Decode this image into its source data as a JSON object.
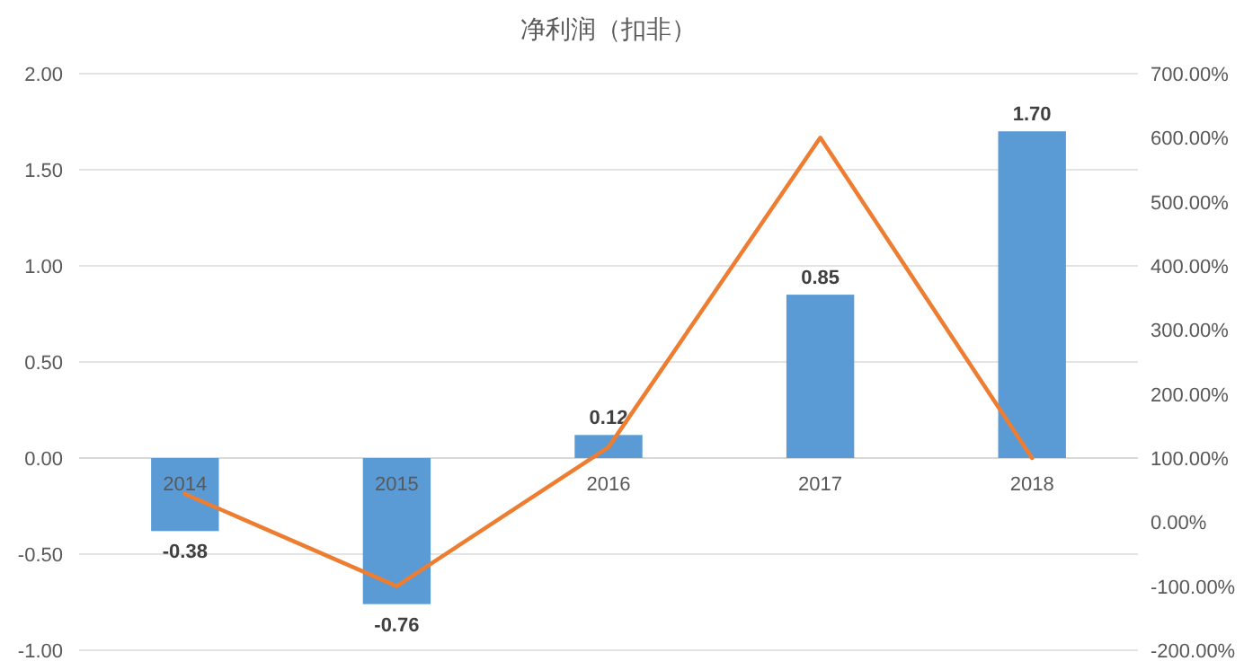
{
  "chart_data": {
    "type": "bar",
    "title": "净利润（扣非）",
    "categories": [
      "2014",
      "2015",
      "2016",
      "2017",
      "2018"
    ],
    "series": [
      {
        "color": "#5b9bd5",
        "values": [
          -0.38,
          -0.76,
          0.12,
          0.85,
          1.7
        ],
        "value_labels": [
          "-0.38",
          "-0.76",
          "0.12",
          "0.85",
          "1.70"
        ]
      },
      {
        "type": "line",
        "axis": "y2",
        "color": "#ed7d31",
        "values": [
          44,
          -100,
          117,
          600,
          100
        ]
      }
    ],
    "ylim": [
      -1,
      2
    ],
    "yticks": [
      {
        "value": -1,
        "label": "-1.00"
      },
      {
        "value": -0.5,
        "label": "-0.50"
      },
      {
        "value": 0,
        "label": "0.00"
      },
      {
        "value": 0.5,
        "label": "0.50"
      },
      {
        "value": 1,
        "label": "1.00"
      },
      {
        "value": 1.5,
        "label": "1.50"
      },
      {
        "value": 2,
        "label": "2.00"
      }
    ],
    "y2lim": [
      -200,
      700
    ],
    "y2ticks": [
      {
        "value": -200,
        "label": "-200.00%"
      },
      {
        "value": -100,
        "label": "-100.00%"
      },
      {
        "value": 0,
        "label": "0.00%"
      },
      {
        "value": 100,
        "label": "100.00%"
      },
      {
        "value": 200,
        "label": "200.00%"
      },
      {
        "value": 300,
        "label": "300.00%"
      },
      {
        "value": 400,
        "label": "400.00%"
      },
      {
        "value": 500,
        "label": "500.00%"
      },
      {
        "value": 600,
        "label": "600.00%"
      },
      {
        "value": 700,
        "label": "700.00%"
      }
    ],
    "grid": "y",
    "marker": "none",
    "line_style": "solid"
  }
}
